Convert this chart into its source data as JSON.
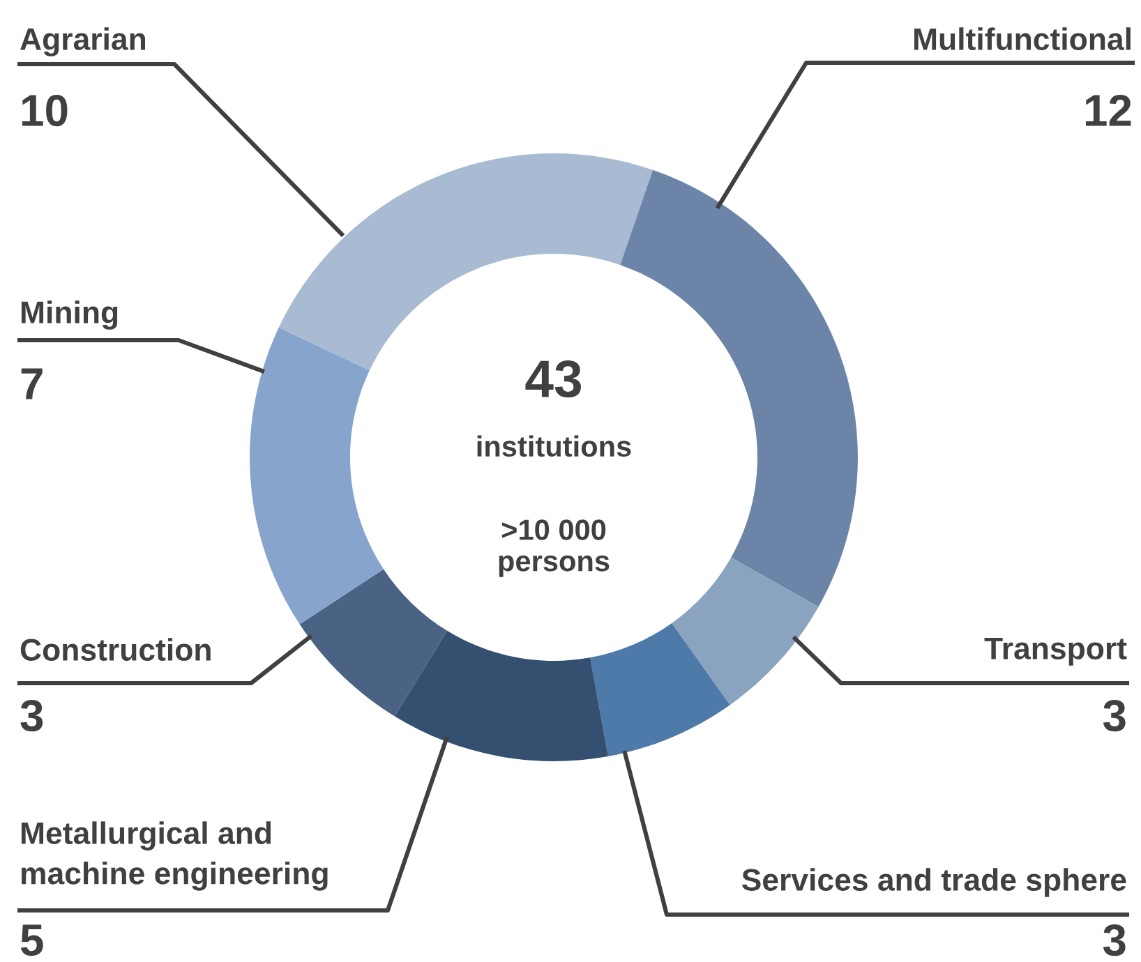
{
  "chart_data": {
    "type": "donut",
    "categories": [
      "Multifunctional",
      "Transport",
      "Services and trade sphere",
      "Metallurgical and\nmachine engineering",
      "Construction",
      "Mining",
      "Agrarian"
    ],
    "values": [
      12,
      3,
      3,
      5,
      3,
      7,
      10
    ],
    "colors": [
      "#6b84a8",
      "#8aa3bf",
      "#4d7aa8",
      "#344f70",
      "#4a6385",
      "#87a5cc",
      "#a8bbd2"
    ],
    "data_labels": true,
    "legend": false,
    "annotations": [
      "43",
      "institutions",
      ">10 000\npersons"
    ]
  }
}
